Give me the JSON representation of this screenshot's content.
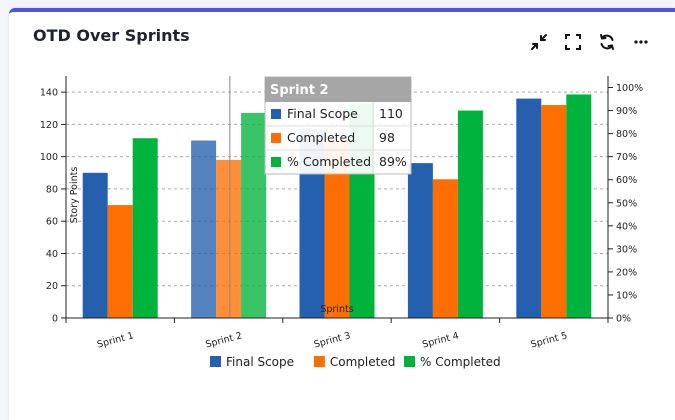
{
  "card": {
    "title": "OTD Over Sprints",
    "toolbar": {
      "collapse_icon": "collapse-arrows-icon",
      "expand_icon": "fullscreen-icon",
      "refresh_icon": "refresh-icon",
      "more_icon": "more-dots-icon"
    }
  },
  "chart_data": {
    "type": "bar",
    "title": "",
    "xlabel": "Sprints",
    "ylabel": "Story Points",
    "categories": [
      "Sprint 1",
      "Sprint 2",
      "Sprint 3",
      "Sprint 4",
      "Sprint 5"
    ],
    "ylim": [
      0,
      150
    ],
    "yticks": [
      0,
      20,
      40,
      60,
      80,
      100,
      120,
      140
    ],
    "y2lim": [
      0,
      105
    ],
    "y2ticks": [
      "0%",
      "10%",
      "20%",
      "30%",
      "40%",
      "50%",
      "60%",
      "70%",
      "80%",
      "90%",
      "100%"
    ],
    "series": [
      {
        "name": "Final Scope",
        "values": [
          90,
          110,
          117,
          96,
          136
        ],
        "color": "#2460ae",
        "axis": "left"
      },
      {
        "name": "Completed",
        "values": [
          70,
          98,
          109,
          86,
          132
        ],
        "color": "#ff6e00",
        "axis": "left"
      },
      {
        "name": "% Completed",
        "values": [
          78,
          89,
          93,
          90,
          97
        ],
        "unit": "%",
        "color": "#00b33c",
        "axis": "right"
      }
    ],
    "grid": true,
    "legend": "bottom",
    "highlighted_category": "Sprint 2",
    "tooltip": {
      "title": "Sprint 2",
      "rows": [
        {
          "label": "Final Scope",
          "value": "110"
        },
        {
          "label": "Completed",
          "value": "98"
        },
        {
          "label": "% Completed",
          "value": "89%"
        }
      ]
    }
  }
}
